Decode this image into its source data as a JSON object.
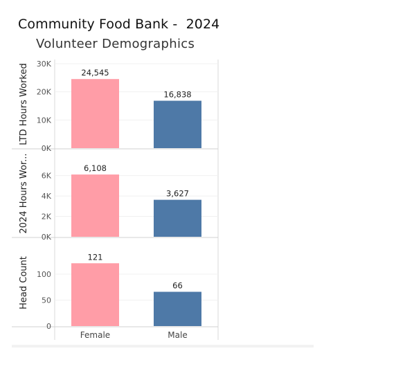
{
  "title": "Community Food Bank -  2024",
  "subtitle": "Volunteer Demographics",
  "colors": {
    "female": "#ff9da7",
    "male": "#4e79a7"
  },
  "chart_data": {
    "type": "bar",
    "categories": [
      "Female",
      "Male"
    ],
    "panels": [
      {
        "ylabel": "LTD Hours Worked",
        "values": [
          24545,
          16838
        ],
        "value_labels": [
          "24,545",
          "16,838"
        ],
        "ylim": [
          0,
          30000
        ],
        "ticks": [
          0,
          10000,
          20000,
          30000
        ],
        "tick_labels": [
          "0K",
          "10K",
          "20K",
          "30K"
        ]
      },
      {
        "ylabel": "2024 Hours Wor...",
        "values": [
          6108,
          3627
        ],
        "value_labels": [
          "6,108",
          "3,627"
        ],
        "ylim": [
          0,
          7200
        ],
        "ticks": [
          0,
          2000,
          4000,
          6000
        ],
        "tick_labels": [
          "0K",
          "2K",
          "4K",
          "6K"
        ]
      },
      {
        "ylabel": "Head Count",
        "values": [
          121,
          66
        ],
        "value_labels": [
          "121",
          "66"
        ],
        "ylim": [
          0,
          140
        ],
        "ticks": [
          0,
          50,
          100
        ],
        "tick_labels": [
          "0",
          "50",
          "100"
        ]
      }
    ],
    "grid": true,
    "legend": "none"
  }
}
